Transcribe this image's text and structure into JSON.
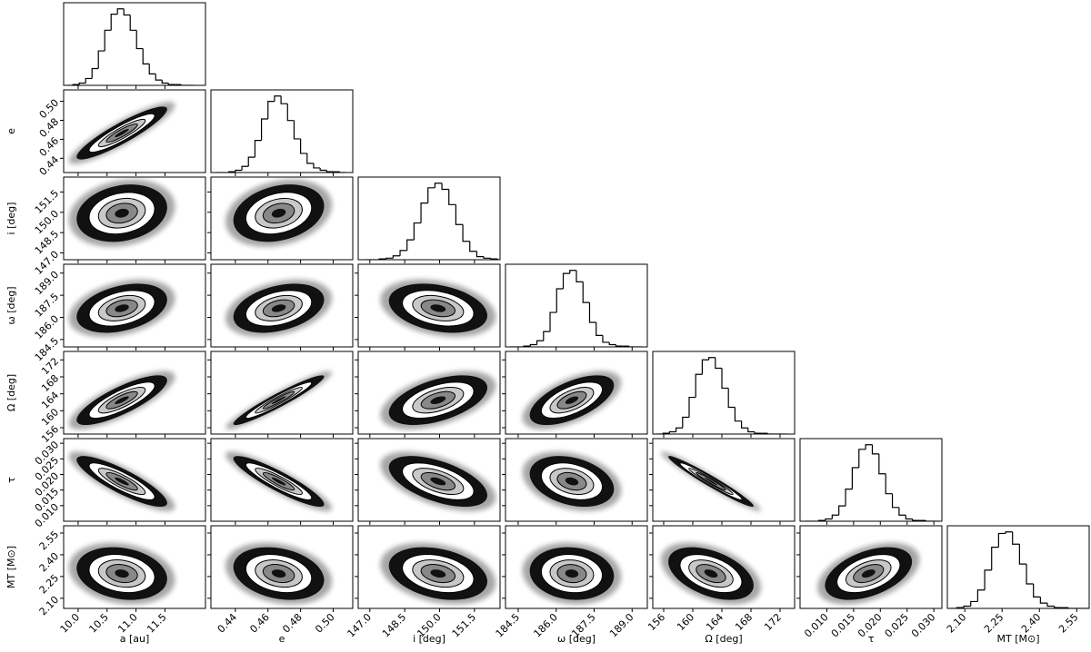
{
  "chart_data": {
    "type": "corner",
    "parameters": [
      {
        "label": "a [au]",
        "xlim": [
          9.75,
          12.2
        ],
        "xticks": [
          {
            "value": 10,
            "label": "10.0"
          },
          10.5,
          {
            "value": 11,
            "label": "11.0"
          },
          11.5
        ],
        "bins": [
          9.8,
          9.91,
          10.02,
          10.13,
          10.24,
          10.35,
          10.46,
          10.57,
          10.68,
          10.79,
          10.9,
          11.01,
          11.12,
          11.23,
          11.34,
          11.45,
          11.56,
          11.67,
          11.78,
          11.89,
          12.0
        ],
        "counts": [
          0,
          1,
          3,
          9,
          22,
          45,
          72,
          93,
          100,
          92,
          72,
          48,
          28,
          15,
          7,
          3,
          1,
          1,
          0,
          0
        ]
      },
      {
        "label": "e",
        "xlim": [
          0.425,
          0.512
        ],
        "xticks": [
          0.44,
          0.46,
          0.48,
          {
            "value": 0.5,
            "label": "0.50"
          }
        ],
        "bins": [
          0.428,
          0.432,
          0.436,
          0.44,
          0.444,
          0.448,
          0.452,
          0.456,
          0.46,
          0.464,
          0.468,
          0.472,
          0.476,
          0.48,
          0.484,
          0.488,
          0.492,
          0.496,
          0.5,
          0.504,
          0.508
        ],
        "counts": [
          0,
          0,
          1,
          3,
          8,
          20,
          42,
          70,
          93,
          100,
          90,
          68,
          44,
          25,
          12,
          6,
          3,
          1,
          1,
          0
        ]
      },
      {
        "label": "i [deg]",
        "xlim": [
          146.5,
          152.6
        ],
        "xticks": [
          {
            "value": 147,
            "label": "147.0"
          },
          148.5,
          {
            "value": 150,
            "label": "150.0"
          },
          151.5
        ],
        "bins": [
          146.8,
          147.1,
          147.4,
          147.7,
          148.0,
          148.3,
          148.6,
          148.9,
          149.2,
          149.5,
          149.8,
          150.1,
          150.4,
          150.7,
          151.0,
          151.3,
          151.6,
          151.9,
          152.2,
          152.5,
          152.8
        ],
        "counts": [
          0,
          0,
          1,
          2,
          5,
          12,
          26,
          48,
          74,
          94,
          100,
          92,
          72,
          46,
          24,
          11,
          4,
          2,
          1,
          0
        ]
      },
      {
        "label": "ω [deg]",
        "xlim": [
          184.0,
          189.6
        ],
        "xticks": [
          184.5,
          {
            "value": 186,
            "label": "186.0"
          },
          187.5,
          {
            "value": 189,
            "label": "189.0"
          }
        ],
        "bins": [
          184.2,
          184.46,
          184.72,
          184.98,
          185.24,
          185.5,
          185.76,
          186.02,
          186.28,
          186.54,
          186.8,
          187.06,
          187.32,
          187.58,
          187.84,
          188.1,
          188.36,
          188.62,
          188.88,
          189.14,
          189.4
        ],
        "counts": [
          0,
          0,
          1,
          3,
          8,
          20,
          45,
          76,
          96,
          100,
          85,
          58,
          32,
          15,
          6,
          3,
          1,
          1,
          0,
          0
        ]
      },
      {
        "label": "Ω [deg]",
        "xlim": [
          154.5,
          174.0
        ],
        "xticks": [
          156,
          160,
          164,
          168,
          172
        ],
        "bins": [
          155,
          155.9,
          156.8,
          157.7,
          158.6,
          159.5,
          160.4,
          161.3,
          162.2,
          163.1,
          164.0,
          164.9,
          165.8,
          166.7,
          167.6,
          168.5,
          169.4,
          170.3,
          171.2,
          172.1,
          173.0
        ],
        "counts": [
          0,
          1,
          3,
          8,
          22,
          48,
          78,
          97,
          100,
          86,
          60,
          35,
          17,
          8,
          3,
          1,
          1,
          0,
          0,
          0
        ]
      },
      {
        "label": "τ",
        "xlim": [
          0.005,
          0.0315
        ],
        "xticks": [
          {
            "value": 0.01,
            "label": "0.010"
          },
          0.015,
          {
            "value": 0.02,
            "label": "0.020"
          },
          0.025,
          {
            "value": 0.03,
            "label": "0.030"
          }
        ],
        "bins": [
          0.006,
          0.00725,
          0.0085,
          0.00975,
          0.011,
          0.01225,
          0.0135,
          0.01475,
          0.016,
          0.01725,
          0.0185,
          0.01975,
          0.021,
          0.02225,
          0.0235,
          0.02475,
          0.026,
          0.02725,
          0.0285,
          0.02975,
          0.031
        ],
        "counts": [
          0,
          0,
          1,
          3,
          8,
          20,
          42,
          70,
          94,
          100,
          88,
          62,
          36,
          18,
          8,
          3,
          1,
          1,
          0,
          0
        ]
      },
      {
        "label": "MT [M⊙]",
        "xlim": [
          2.03,
          2.6
        ],
        "xticks": [
          {
            "value": 2.1,
            "label": "2.10"
          },
          2.25,
          {
            "value": 2.4,
            "label": "2.40"
          },
          2.55
        ],
        "bins": [
          2.04,
          2.068,
          2.096,
          2.124,
          2.152,
          2.18,
          2.208,
          2.236,
          2.264,
          2.292,
          2.32,
          2.348,
          2.376,
          2.404,
          2.432,
          2.46,
          2.488,
          2.516,
          2.544,
          2.572,
          2.6
        ],
        "counts": [
          0,
          1,
          3,
          9,
          24,
          50,
          80,
          98,
          100,
          84,
          58,
          32,
          15,
          7,
          3,
          1,
          1,
          0,
          0,
          0
        ]
      }
    ],
    "correlations": [
      [],
      [
        0.9
      ],
      [
        0.2,
        0.25
      ],
      [
        0.35,
        0.35,
        -0.3
      ],
      [
        0.8,
        0.95,
        0.5,
        0.6
      ],
      [
        -0.85,
        -0.9,
        -0.55,
        -0.3,
        -0.97
      ],
      [
        -0.2,
        -0.25,
        -0.3,
        -0.1,
        -0.45,
        0.45
      ]
    ]
  }
}
